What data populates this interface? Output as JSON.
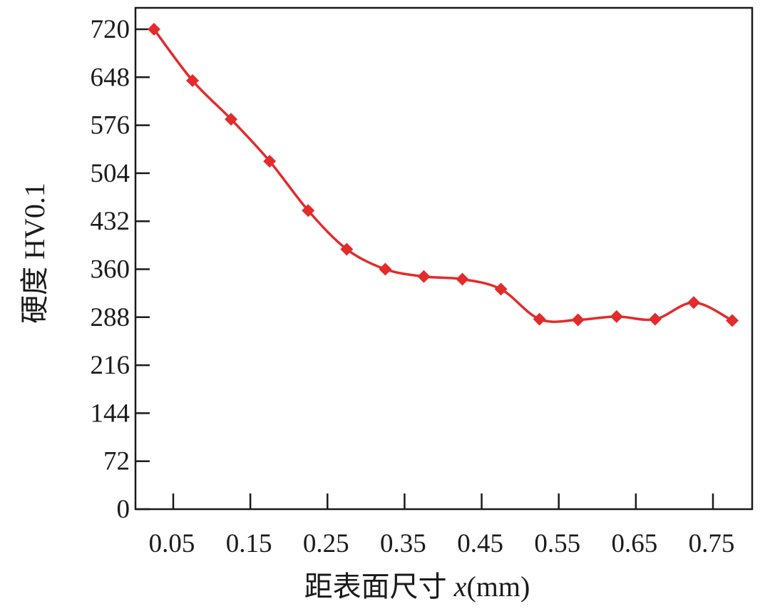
{
  "chart_data": {
    "type": "line",
    "title": "",
    "xlabel": "距表面尺寸 x(mm)",
    "xlabel_parts": {
      "cn": "距表面尺寸 ",
      "var": "x",
      "unit": "(mm)"
    },
    "ylabel": "硬度 HV0.1",
    "x_ticks": [
      0.05,
      0.15,
      0.25,
      0.35,
      0.45,
      0.55,
      0.65,
      0.75
    ],
    "x_tick_labels": [
      "0.05",
      "0.15",
      "0.25",
      "0.35",
      "0.45",
      "0.55",
      "0.65",
      "0.75"
    ],
    "y_ticks": [
      0,
      72,
      144,
      216,
      288,
      360,
      432,
      504,
      576,
      648,
      720
    ],
    "y_tick_labels": [
      "0",
      "72",
      "144",
      "216",
      "288",
      "360",
      "432",
      "504",
      "576",
      "648",
      "720"
    ],
    "xlim": [
      0,
      0.8
    ],
    "ylim": [
      0,
      750
    ],
    "grid": false,
    "legend": null,
    "series": [
      {
        "name": "硬度 HV0.1",
        "color": "#e32b2b",
        "marker": "diamond",
        "smooth": true,
        "x": [
          0.025,
          0.075,
          0.125,
          0.175,
          0.225,
          0.275,
          0.325,
          0.375,
          0.425,
          0.475,
          0.525,
          0.575,
          0.625,
          0.675,
          0.725,
          0.775
        ],
        "values": [
          720,
          643,
          585,
          522,
          448,
          390,
          360,
          349,
          345,
          330,
          285,
          284,
          289,
          285,
          310,
          283
        ]
      }
    ]
  },
  "colors": {
    "series": "#e32b2b",
    "axis": "#1a1a1a",
    "background": "#ffffff"
  }
}
